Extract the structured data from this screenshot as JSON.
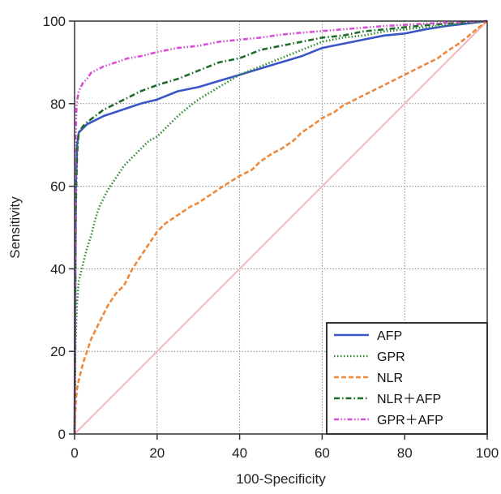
{
  "chart_data": {
    "type": "line",
    "xlabel": "100-Specificity",
    "ylabel": "Sensitivity",
    "xlim": [
      0,
      100
    ],
    "ylim": [
      0,
      100
    ],
    "xticks": [
      0,
      20,
      40,
      60,
      80,
      100
    ],
    "yticks": [
      0,
      20,
      40,
      60,
      80,
      100
    ],
    "grid": true,
    "legend_position": "bottom-right",
    "reference_line": {
      "x": [
        0,
        100
      ],
      "y": [
        0,
        100
      ],
      "color": "#f0b8b8"
    },
    "series": [
      {
        "name": "AFP",
        "color": "#3a55c8",
        "dash": "solid",
        "x": [
          0,
          0.3,
          0.6,
          1,
          2,
          3,
          5,
          7,
          10,
          13,
          16,
          20,
          25,
          30,
          35,
          40,
          45,
          50,
          55,
          60,
          65,
          70,
          75,
          80,
          85,
          90,
          95,
          100
        ],
        "y": [
          0,
          60,
          70,
          73,
          74,
          75,
          76,
          77,
          78,
          79,
          80,
          81,
          83,
          84,
          85.5,
          87,
          88.5,
          90,
          91.5,
          93.5,
          94.5,
          95.5,
          96.5,
          97,
          98,
          98.8,
          99.4,
          100
        ]
      },
      {
        "name": "GPR",
        "color": "#2e8b2e",
        "dash": "dotted",
        "x": [
          0,
          0.2,
          0.5,
          1,
          2,
          3,
          4,
          5,
          6,
          8,
          10,
          12,
          15,
          18,
          20,
          22,
          25,
          28,
          30,
          35,
          40,
          45,
          50,
          55,
          60,
          65,
          70,
          75,
          80,
          85,
          90,
          95,
          100
        ],
        "y": [
          0,
          20,
          30,
          37,
          41,
          45,
          48,
          52,
          55,
          59,
          62,
          65,
          68,
          71,
          72,
          74,
          77,
          79.5,
          81,
          84,
          87,
          89,
          91,
          93,
          95,
          96,
          96.5,
          97.5,
          98,
          98.5,
          99,
          99.5,
          100
        ]
      },
      {
        "name": "NLR",
        "color": "#f0883a",
        "dash": "dashed",
        "x": [
          0,
          0.3,
          0.6,
          1,
          2,
          3,
          4,
          6,
          8,
          10,
          12,
          14,
          16,
          18,
          20,
          22,
          25,
          28,
          30,
          33,
          36,
          40,
          43,
          45,
          48,
          50,
          53,
          55,
          58,
          60,
          63,
          65,
          68,
          70,
          73,
          75,
          78,
          80,
          83,
          85,
          88,
          90,
          93,
          95,
          98,
          100
        ],
        "y": [
          0,
          8,
          11,
          13,
          17,
          20,
          23,
          27,
          31,
          34,
          36,
          40,
          43,
          46,
          49,
          51,
          53,
          55,
          56,
          58,
          60,
          62.5,
          64,
          66,
          68,
          69,
          71,
          73,
          75,
          76.5,
          78,
          79.5,
          81,
          82,
          83.5,
          84.5,
          86,
          87,
          88.5,
          89.5,
          91,
          92.5,
          94.5,
          96,
          98.5,
          100
        ]
      },
      {
        "name": "NLR＋AFP",
        "color": "#1f6b2a",
        "dash": "dashdot",
        "x": [
          0,
          0.3,
          0.6,
          1,
          2,
          3,
          5,
          7,
          10,
          13,
          16,
          20,
          25,
          30,
          35,
          40,
          45,
          50,
          55,
          60,
          65,
          70,
          75,
          80,
          85,
          90,
          95,
          100
        ],
        "y": [
          0,
          55,
          68,
          73,
          74.5,
          75.5,
          77,
          78.5,
          80,
          81.5,
          83,
          84.5,
          86,
          88,
          90,
          91,
          93,
          94,
          95,
          96,
          96.5,
          97.5,
          98,
          98.5,
          99,
          99.4,
          99.7,
          100
        ]
      },
      {
        "name": "GPR＋AFP",
        "color": "#d54fd5",
        "dash": "dashdotdot",
        "x": [
          0,
          0.2,
          0.5,
          1,
          2,
          3,
          4,
          5,
          7,
          10,
          13,
          16,
          20,
          25,
          30,
          35,
          40,
          45,
          50,
          55,
          60,
          65,
          70,
          75,
          80,
          85,
          90,
          95,
          100
        ],
        "y": [
          0,
          70,
          80,
          83,
          85,
          86,
          87.5,
          88,
          89,
          90,
          91,
          91.5,
          92.5,
          93.5,
          94,
          95,
          95.5,
          96,
          96.7,
          97.2,
          97.6,
          98,
          98.4,
          98.8,
          99.1,
          99.4,
          99.6,
          99.8,
          100
        ]
      }
    ]
  }
}
